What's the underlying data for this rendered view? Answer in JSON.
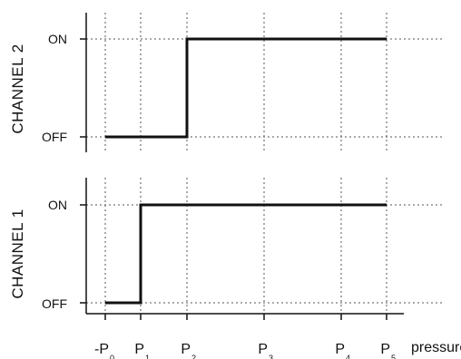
{
  "chart_data": [
    {
      "type": "line",
      "step": true,
      "ylabel": "CHANNEL 2",
      "y_ticks": [
        "OFF",
        "ON"
      ],
      "x_ticks": [
        "-P",
        "P",
        "P",
        "P",
        "P",
        "P"
      ],
      "x_tick_subscripts": [
        "0",
        "1",
        "2",
        "3",
        "4",
        "5"
      ],
      "x": [
        0,
        1,
        2,
        3,
        4,
        5
      ],
      "values": [
        "OFF",
        "OFF",
        "ON",
        "ON",
        "ON",
        "ON"
      ],
      "grid": true
    },
    {
      "type": "line",
      "step": true,
      "ylabel": "CHANNEL 1",
      "y_ticks": [
        "OFF",
        "ON"
      ],
      "x_ticks": [
        "-P",
        "P",
        "P",
        "P",
        "P",
        "P"
      ],
      "x_tick_subscripts": [
        "0",
        "1",
        "2",
        "3",
        "4",
        "5"
      ],
      "x": [
        0,
        1,
        2,
        3,
        4,
        5
      ],
      "values": [
        "OFF",
        "ON",
        "ON",
        "ON",
        "ON",
        "ON"
      ],
      "xlabel": "pressure",
      "grid": true
    }
  ]
}
